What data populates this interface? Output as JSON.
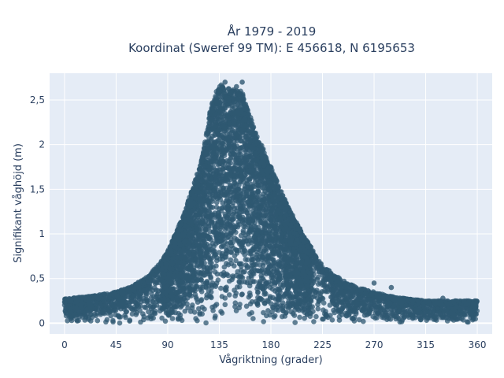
{
  "chart_data": {
    "type": "scatter",
    "title_line1": "År 1979 - 2019",
    "title_line2": "Koordinat (Sweref 99 TM): E 456618, N 6195653",
    "xlabel": "Vågriktning (grader)",
    "ylabel": "Signifikant våghöjd (m)",
    "xlim": [
      -13,
      373
    ],
    "ylim": [
      -0.12,
      2.8
    ],
    "x_ticks": [
      0,
      45,
      90,
      135,
      180,
      225,
      270,
      315,
      360
    ],
    "x_tick_labels": [
      "0",
      "45",
      "90",
      "135",
      "180",
      "225",
      "270",
      "315",
      "360"
    ],
    "y_ticks": [
      0,
      0.5,
      1,
      1.5,
      2,
      2.5
    ],
    "y_tick_labels": [
      "0",
      "0,5",
      "1",
      "1,5",
      "2",
      "2,5"
    ],
    "grid": true,
    "marker_color": "#2f5872",
    "envelope": {
      "x": [
        0,
        20,
        45,
        60,
        75,
        90,
        105,
        120,
        128,
        135,
        145,
        155,
        165,
        180,
        195,
        210,
        225,
        240,
        255,
        270,
        285,
        300,
        315,
        330,
        345,
        360
      ],
      "y_max": [
        0.27,
        0.3,
        0.35,
        0.42,
        0.55,
        0.8,
        1.25,
        1.85,
        2.45,
        2.68,
        2.62,
        2.6,
        2.2,
        1.75,
        1.3,
        0.95,
        0.65,
        0.5,
        0.4,
        0.35,
        0.3,
        0.27,
        0.25,
        0.25,
        0.25,
        0.25
      ]
    },
    "notable_points": [
      {
        "x": 140,
        "y": 2.7
      },
      {
        "x": 150,
        "y": 2.65
      },
      {
        "x": 155,
        "y": 2.7
      },
      {
        "x": 270,
        "y": 0.45
      },
      {
        "x": 285,
        "y": 0.4
      },
      {
        "x": 330,
        "y": 0.28
      }
    ]
  }
}
